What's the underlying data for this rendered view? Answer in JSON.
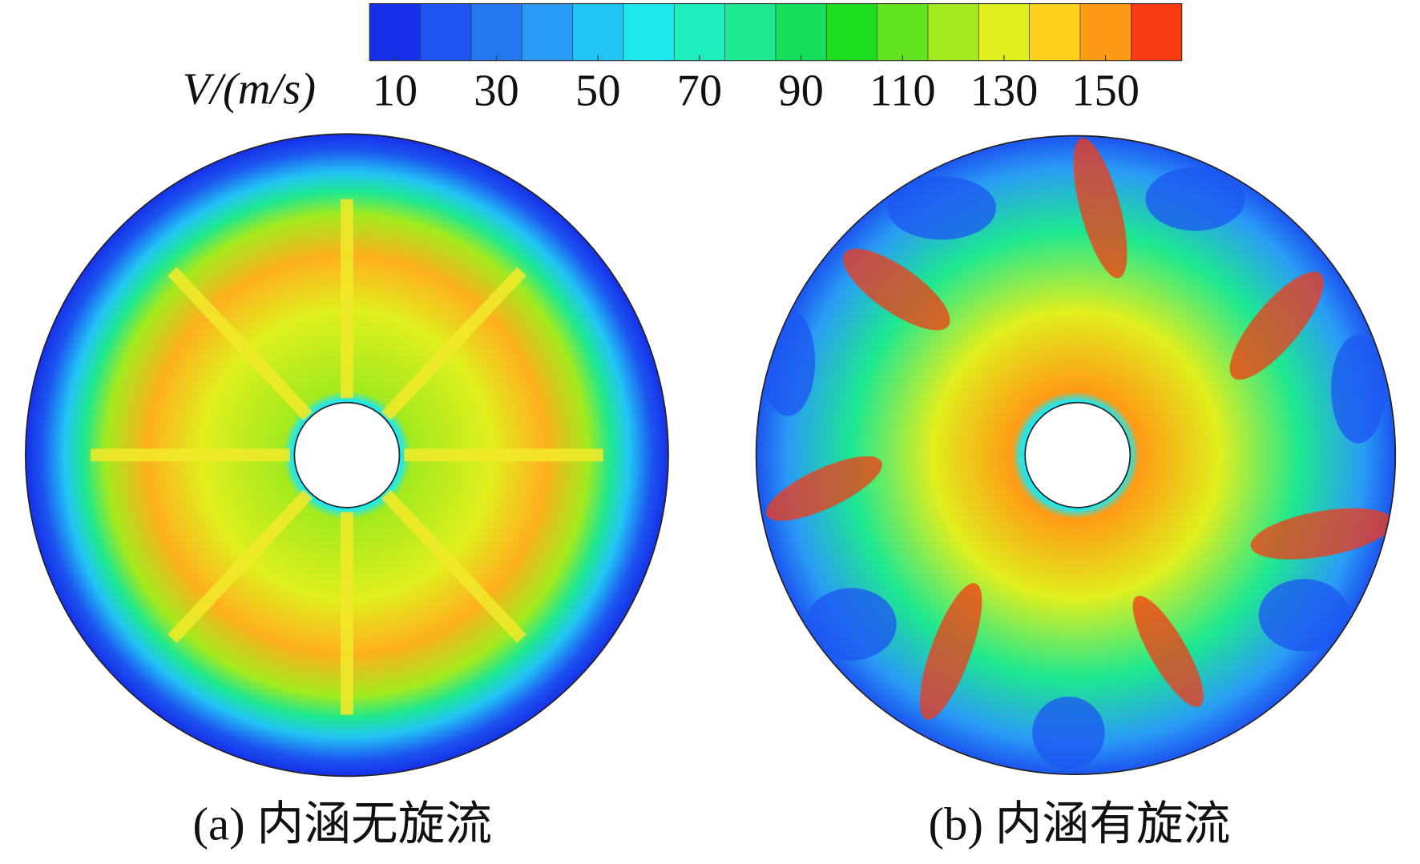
{
  "chart_data": {
    "type": "contour",
    "colorbar_label": "V/(m/s)",
    "clim": [
      5,
      165
    ],
    "cticks": [
      10,
      30,
      50,
      70,
      90,
      110,
      130,
      150
    ],
    "colormap": [
      "#1530e8",
      "#1c55f0",
      "#2378f2",
      "#2a9cf5",
      "#22c4f5",
      "#1ee8ee",
      "#1eeec0",
      "#1ee890",
      "#14de5a",
      "#1edc1e",
      "#62e41e",
      "#a2ea1e",
      "#e0ef1e",
      "#ffd01e",
      "#ff9a14",
      "#f53a14"
    ],
    "panels": [
      {
        "caption": "(a) 内涵无旋流"
      },
      {
        "caption": "(b) 内涵有旋流"
      }
    ]
  }
}
